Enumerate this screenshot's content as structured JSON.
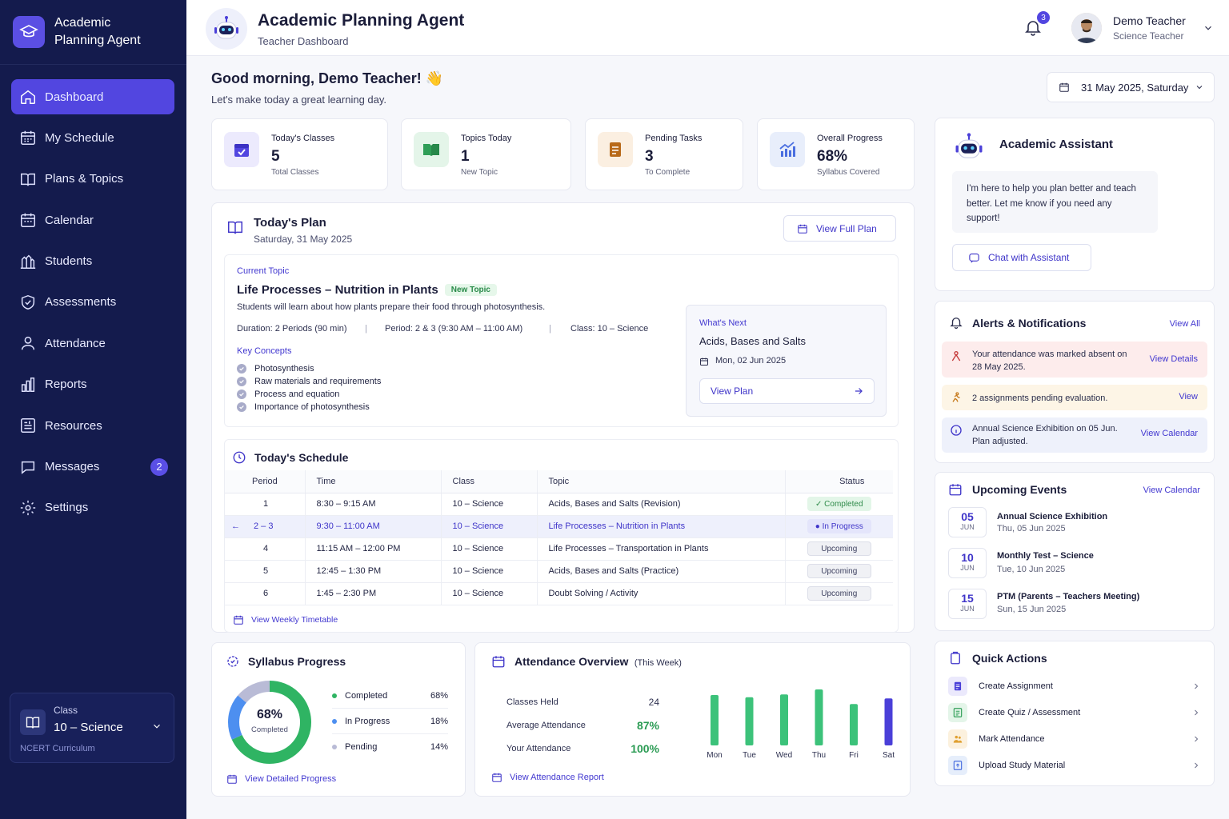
{
  "app": {
    "brand": "Academic Planning Agent",
    "title": "Academic Planning Agent",
    "subtitle": "Teacher Dashboard"
  },
  "sidebar": {
    "items": [
      {
        "label": "Dashboard",
        "icon": "home-icon",
        "active": true
      },
      {
        "label": "My Schedule",
        "icon": "calendar-icon"
      },
      {
        "label": "Plans & Topics",
        "icon": "book-icon"
      },
      {
        "label": "Calendar",
        "icon": "calendar-icon"
      },
      {
        "label": "Students",
        "icon": "students-icon"
      },
      {
        "label": "Assessments",
        "icon": "shield-check-icon"
      },
      {
        "label": "Attendance",
        "icon": "user-icon"
      },
      {
        "label": "Reports",
        "icon": "bar-chart-icon"
      },
      {
        "label": "Resources",
        "icon": "resources-icon"
      },
      {
        "label": "Messages",
        "icon": "chat-icon",
        "badge": "2"
      },
      {
        "label": "Settings",
        "icon": "gear-icon"
      }
    ],
    "class_card": {
      "label": "Class",
      "value": "10 – Science",
      "curriculum": "NCERT Curriculum"
    }
  },
  "header": {
    "notifications": "3",
    "user": {
      "name": "Demo Teacher",
      "role": "Science Teacher"
    }
  },
  "greeting": {
    "title": "Good morning, Demo Teacher! 👋",
    "subtitle": "Let's make today a great learning day."
  },
  "date_picker": "31 May 2025, Saturday",
  "stats": [
    {
      "label": "Today's Classes",
      "value": "5",
      "sub": "Total Classes",
      "color": "#5246e0"
    },
    {
      "label": "Topics Today",
      "value": "1",
      "sub": "New Topic",
      "color": "#2f9e57"
    },
    {
      "label": "Pending Tasks",
      "value": "3",
      "sub": "To Complete",
      "color": "#b86a1a"
    },
    {
      "label": "Overall Progress",
      "value": "68%",
      "sub": "Syllabus Covered",
      "color": "#4a6ee0"
    }
  ],
  "plan": {
    "title": "Today's Plan",
    "date": "Saturday, 31 May 2025",
    "view_full": "View Full Plan",
    "current_label": "Current Topic",
    "topic": "Life Processes – Nutrition in Plants",
    "tag": "New Topic",
    "description": "Students will learn about how plants prepare their food through photosynthesis.",
    "duration": "Duration: 2 Periods (90 min)",
    "period": "Period: 2 & 3 (9:30 AM – 11:00 AM)",
    "class": "Class: 10 – Science",
    "concepts_label": "Key Concepts",
    "concepts": [
      "Photosynthesis",
      "Raw materials and requirements",
      "Process and equation",
      "Importance of photosynthesis"
    ],
    "next": {
      "label": "What's Next",
      "topic": "Acids, Bases and Salts",
      "date": "Mon, 02 Jun 2025",
      "button": "View Plan"
    }
  },
  "schedule": {
    "title": "Today's Schedule",
    "columns": [
      "Period",
      "Time",
      "Class",
      "Topic",
      "Status"
    ],
    "rows": [
      {
        "period": "1",
        "time": "8:30 – 9:15 AM",
        "class": "10 – Science",
        "topic": "Acids, Bases and Salts (Revision)",
        "status": "Completed",
        "kind": "completed"
      },
      {
        "period": "2 – 3",
        "time": "9:30 – 11:00 AM",
        "class": "10 – Science",
        "topic": "Life Processes – Nutrition in Plants",
        "status": "In Progress",
        "kind": "inprogress",
        "current": true
      },
      {
        "period": "4",
        "time": "11:15 AM – 12:00 PM",
        "class": "10 – Science",
        "topic": "Life Processes – Transportation in Plants",
        "status": "Upcoming",
        "kind": "upcoming"
      },
      {
        "period": "5",
        "time": "12:45 – 1:30 PM",
        "class": "10 – Science",
        "topic": "Acids, Bases and Salts (Practice)",
        "status": "Upcoming",
        "kind": "upcoming"
      },
      {
        "period": "6",
        "time": "1:45 – 2:30 PM",
        "class": "10 – Science",
        "topic": "Doubt Solving / Activity",
        "status": "Upcoming",
        "kind": "upcoming"
      }
    ],
    "link": "View Weekly Timetable"
  },
  "syllabus": {
    "title": "Syllabus Progress",
    "center_value": "68%",
    "center_label": "Completed",
    "items": [
      {
        "label": "Completed",
        "value": "68%",
        "pct": 68,
        "color": "#2fb463"
      },
      {
        "label": "In Progress",
        "value": "18%",
        "pct": 18,
        "color": "#4d8ff0"
      },
      {
        "label": "Pending",
        "value": "14%",
        "pct": 14,
        "color": "#b9bbd6"
      }
    ],
    "link": "View Detailed Progress"
  },
  "attendance": {
    "title": "Attendance Overview",
    "period": "(This Week)",
    "stats": [
      {
        "label": "Classes Held",
        "value": "24"
      },
      {
        "label": "Average Attendance",
        "value": "87%"
      },
      {
        "label": "Your Attendance",
        "value": "100%"
      }
    ],
    "chart_data": {
      "type": "bar",
      "categories": [
        "Mon",
        "Tue",
        "Wed",
        "Thu",
        "Fri",
        "Sat"
      ],
      "values": [
        90,
        86,
        91,
        100,
        74,
        84
      ],
      "highlight": "Sat",
      "ylim": [
        0,
        100
      ],
      "colors": {
        "default": "#3cc27a",
        "highlight": "#4a3fd8"
      }
    },
    "link": "View Attendance Report"
  },
  "assistant": {
    "title": "Academic Assistant",
    "message": "I'm here to help you plan better and teach better. Let me know if you need any support!",
    "button": "Chat with Assistant"
  },
  "alerts": {
    "title": "Alerts & Notifications",
    "view_all": "View All",
    "items": [
      {
        "text": "Your attendance was marked absent on 28 May 2025.",
        "link": "View Details"
      },
      {
        "text": "2 assignments pending evaluation.",
        "link": "View"
      },
      {
        "text": "Annual Science Exhibition on 05 Jun. Plan adjusted.",
        "link": "View Calendar"
      }
    ]
  },
  "events": {
    "title": "Upcoming Events",
    "link": "View Calendar",
    "items": [
      {
        "day": "05",
        "month": "JUN",
        "title": "Annual Science Exhibition",
        "date": "Thu, 05 Jun 2025"
      },
      {
        "day": "10",
        "month": "JUN",
        "title": "Monthly Test – Science",
        "date": "Tue, 10 Jun 2025"
      },
      {
        "day": "15",
        "month": "JUN",
        "title": "PTM (Parents – Teachers Meeting)",
        "date": "Sun, 15 Jun 2025"
      }
    ]
  },
  "quick_actions": {
    "title": "Quick Actions",
    "items": [
      {
        "label": "Create Assignment"
      },
      {
        "label": "Create Quiz / Assessment"
      },
      {
        "label": "Mark Attendance"
      },
      {
        "label": "Upload Study Material"
      }
    ]
  }
}
